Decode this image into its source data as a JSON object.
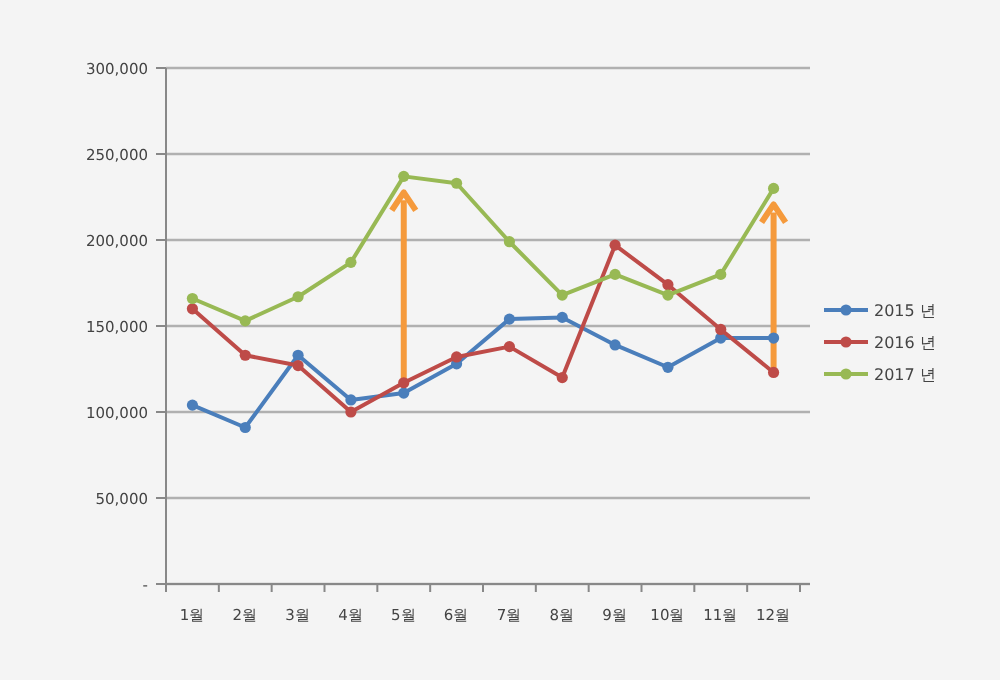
{
  "chart_data": {
    "type": "line",
    "categories": [
      "1월",
      "2월",
      "3월",
      "4월",
      "5월",
      "6월",
      "7월",
      "8월",
      "9월",
      "10월",
      "11월",
      "12월"
    ],
    "series": [
      {
        "name": "2015 년",
        "color": "#4a7ebb",
        "values": [
          104000,
          91000,
          133000,
          107000,
          111000,
          128000,
          154000,
          155000,
          139000,
          126000,
          143000,
          143000
        ]
      },
      {
        "name": "2016 년",
        "color": "#be4b48",
        "values": [
          160000,
          133000,
          127000,
          100000,
          117000,
          132000,
          138000,
          120000,
          197000,
          174000,
          148000,
          123000
        ]
      },
      {
        "name": "2017 년",
        "color": "#98b954",
        "values": [
          166000,
          153000,
          167000,
          187000,
          237000,
          233000,
          199000,
          168000,
          180000,
          168000,
          180000,
          230000
        ]
      }
    ],
    "ylim": [
      0,
      300000
    ],
    "yticks": [
      {
        "value": 0,
        "label": "-"
      },
      {
        "value": 50000,
        "label": "50,000"
      },
      {
        "value": 100000,
        "label": "100,000"
      },
      {
        "value": 150000,
        "label": "150,000"
      },
      {
        "value": 200000,
        "label": "200,000"
      },
      {
        "value": 250000,
        "label": "250,000"
      },
      {
        "value": 300000,
        "label": "300,000"
      }
    ],
    "grid": "y",
    "legend": "right",
    "marker": "circle",
    "line_style": "solid"
  }
}
